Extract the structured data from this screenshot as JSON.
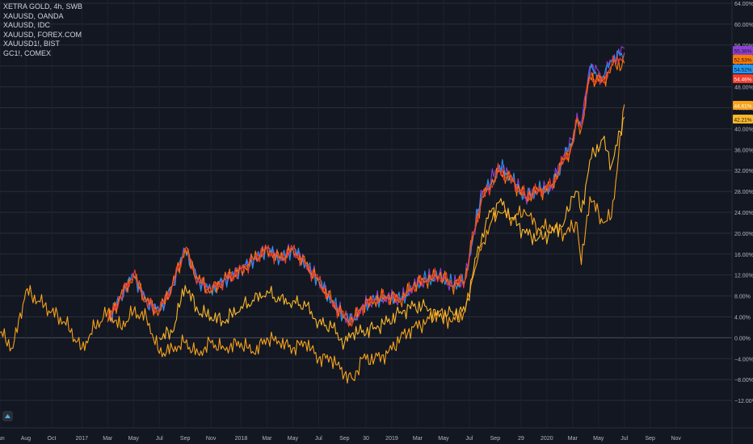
{
  "chart_data": {
    "type": "line",
    "y_unit": "%",
    "ylim": [
      -14,
      64
    ],
    "y_ticks": [
      {
        "value": 64,
        "label": "64.00%"
      },
      {
        "value": 60,
        "label": "60.00%"
      },
      {
        "value": 56,
        "label": "56.00%"
      },
      {
        "value": 52,
        "label": "52.00%"
      },
      {
        "value": 48,
        "label": "48.00%"
      },
      {
        "value": 44,
        "label": "44.00%"
      },
      {
        "value": 40,
        "label": "40.00%"
      },
      {
        "value": 36,
        "label": "36.00%"
      },
      {
        "value": 32,
        "label": "32.00%"
      },
      {
        "value": 28,
        "label": "28.00%"
      },
      {
        "value": 24,
        "label": "24.00%"
      },
      {
        "value": 20,
        "label": "20.00%"
      },
      {
        "value": 16,
        "label": "16.00%"
      },
      {
        "value": 12,
        "label": "12.00%"
      },
      {
        "value": 8,
        "label": "8.00%"
      },
      {
        "value": 4,
        "label": "4.00%"
      },
      {
        "value": 0,
        "label": "0.00%"
      },
      {
        "value": -4,
        "label": "−4.00%"
      },
      {
        "value": -8,
        "label": "−8.00%"
      },
      {
        "value": -12,
        "label": "−12.00%"
      }
    ],
    "x_ticks": [
      "Jun",
      "Aug",
      "Oct",
      "2017",
      "Mar",
      "May",
      "Jul",
      "Sep",
      "Nov",
      "2018",
      "Mar",
      "May",
      "Jul",
      "Sep",
      "30",
      "2019",
      "Mar",
      "May",
      "Jul",
      "Sep",
      "29",
      "2020",
      "Mar",
      "May",
      "Jul",
      "Sep",
      "Nov"
    ],
    "x_tick_index": [
      0,
      6,
      12,
      19,
      25,
      31,
      37,
      43,
      49,
      56,
      62,
      68,
      74,
      80,
      85,
      91,
      97,
      103,
      109,
      115,
      121,
      127,
      133,
      139,
      145,
      151,
      157
    ],
    "x_index_range": [
      0,
      170
    ],
    "grid": true,
    "series": [
      {
        "name": "XETRA GOLD, 4h, SWB",
        "color": "#f7a21b",
        "last_label": "44.61%",
        "x": [
          0,
          3,
          6,
          9,
          12,
          15,
          19,
          22,
          25,
          28,
          31,
          34,
          37,
          40,
          43,
          46,
          49,
          52,
          56,
          59,
          62,
          65,
          68,
          71,
          74,
          77,
          80,
          82,
          84,
          87,
          90,
          93,
          96,
          99,
          102,
          105,
          108,
          110,
          112,
          114,
          116,
          119,
          122,
          125,
          128,
          131,
          133,
          134,
          135,
          137,
          140,
          142,
          145
        ],
        "values": [
          1,
          -2,
          9,
          7,
          5,
          3,
          -2,
          2,
          5,
          2,
          5,
          4,
          -3,
          -2,
          -1,
          -3,
          -1,
          -2,
          -1,
          -3,
          0,
          -1,
          -2,
          -1,
          -4,
          -4,
          -7,
          -8,
          -4,
          -4,
          -3,
          0,
          2,
          3,
          5,
          3,
          5,
          12,
          18,
          22,
          24,
          23,
          24,
          21,
          21,
          20,
          21,
          22,
          14,
          27,
          22,
          23,
          44.61
        ]
      },
      {
        "name": "XAUUSD, OANDA",
        "color": "#fbb82a",
        "last_label": "42.21%",
        "x": [
          37,
          40,
          43,
          46,
          49,
          52,
          56,
          59,
          62,
          65,
          68,
          71,
          74,
          77,
          80,
          82,
          84,
          87,
          90,
          93,
          96,
          99,
          102,
          105,
          108,
          110,
          112,
          114,
          116,
          119,
          122,
          125,
          128,
          131,
          133,
          134,
          135,
          137,
          140,
          142,
          145
        ],
        "values": [
          0,
          1,
          10,
          5,
          4,
          3,
          6,
          7,
          9,
          7,
          7,
          6,
          3,
          2,
          -1,
          1,
          1,
          2,
          3,
          5,
          6,
          6,
          4,
          5,
          5,
          13,
          20,
          24,
          26,
          23,
          20,
          19,
          20,
          22,
          27,
          28,
          24,
          34,
          38,
          33,
          42.21
        ]
      },
      {
        "name": "XAUUSD, IDC",
        "color": "#ff7a00",
        "last_label": "52.53%",
        "x": [
          25,
          28,
          31,
          34,
          37,
          40,
          43,
          46,
          49,
          52,
          56,
          59,
          62,
          65,
          68,
          71,
          74,
          77,
          80,
          82,
          84,
          87,
          90,
          93,
          96,
          99,
          102,
          105,
          108,
          110,
          112,
          114,
          116,
          119,
          122,
          125,
          128,
          131,
          133,
          134,
          135,
          137,
          140,
          142,
          145
        ],
        "values": [
          3,
          8,
          12,
          7,
          5,
          10,
          17,
          11,
          9,
          11,
          13,
          15,
          17,
          15,
          17,
          14,
          11,
          7,
          4,
          3,
          6,
          7,
          8,
          7,
          10,
          11,
          12,
          10,
          11,
          20,
          27,
          29,
          32,
          30,
          27,
          28,
          29,
          34,
          37,
          42,
          40,
          50,
          49,
          52,
          52.53
        ]
      },
      {
        "name": "XAUUSD, FOREX.COM",
        "color": "#8f3fd4",
        "last_label": "55.36%",
        "x": [
          25,
          28,
          31,
          34,
          37,
          40,
          43,
          46,
          49,
          52,
          56,
          59,
          62,
          65,
          68,
          71,
          74,
          77,
          80,
          82,
          84,
          87,
          90,
          93,
          96,
          99,
          102,
          105,
          108,
          110,
          112,
          114,
          116,
          119,
          122,
          125,
          128,
          131,
          133,
          134,
          135,
          137,
          140,
          142,
          145
        ],
        "values": [
          3,
          8,
          12,
          7,
          5,
          10,
          17,
          11,
          9,
          11,
          13,
          15,
          17,
          15,
          17,
          14,
          11,
          7,
          4,
          3,
          6,
          7,
          8,
          7,
          10,
          11,
          12,
          10,
          11,
          20,
          28,
          30,
          33,
          30,
          27,
          28,
          29,
          35,
          38,
          43,
          41,
          52,
          50,
          53,
          55.36
        ]
      },
      {
        "name": "XAUUSD1!, BIST",
        "color": "#2196f3",
        "last_label": "54.52%",
        "x": [
          25,
          28,
          31,
          34,
          37,
          40,
          43,
          46,
          49,
          52,
          56,
          59,
          62,
          65,
          68,
          71,
          74,
          77,
          80,
          82,
          84,
          87,
          90,
          93,
          96,
          99,
          102,
          105,
          108,
          110,
          112,
          114,
          116,
          119,
          122,
          125,
          128,
          131,
          133,
          134,
          135,
          137,
          140,
          142,
          145
        ],
        "values": [
          3,
          8,
          12,
          7,
          5,
          10,
          17,
          11,
          9,
          11,
          13,
          15,
          17,
          15,
          17,
          14,
          11,
          7,
          4,
          3,
          6,
          7,
          8,
          7,
          10,
          11,
          12,
          10,
          11,
          20,
          28,
          29,
          33,
          30,
          27,
          28,
          29,
          34,
          38,
          42,
          40,
          51,
          50,
          53,
          54.52
        ]
      },
      {
        "name": "GC1!, COMEX",
        "color": "#f23c2c",
        "last_label": "54.46%",
        "x": [
          25,
          28,
          31,
          34,
          37,
          40,
          43,
          46,
          49,
          52,
          56,
          59,
          62,
          65,
          68,
          71,
          74,
          77,
          80,
          82,
          84,
          87,
          90,
          93,
          96,
          99,
          102,
          105,
          108,
          110,
          112,
          114,
          116,
          119,
          122,
          125,
          128,
          131,
          133,
          134,
          135,
          137,
          140,
          142,
          145
        ],
        "values": [
          3,
          8,
          12,
          7,
          5,
          10,
          17,
          11,
          9,
          11,
          13,
          15,
          17,
          15,
          17,
          14,
          11,
          7,
          4,
          3,
          6,
          7,
          8,
          7,
          10,
          11,
          12,
          10,
          11,
          20,
          27,
          29,
          32,
          30,
          27,
          28,
          29,
          34,
          37,
          42,
          40,
          50,
          49,
          52,
          54.46
        ]
      }
    ],
    "tag_order": [
      3,
      2,
      4,
      5,
      0,
      1
    ],
    "tag_text_colors": [
      "#131722",
      "#131722",
      "#131722",
      "#ffffff",
      "#ffffff",
      "#131722"
    ]
  }
}
